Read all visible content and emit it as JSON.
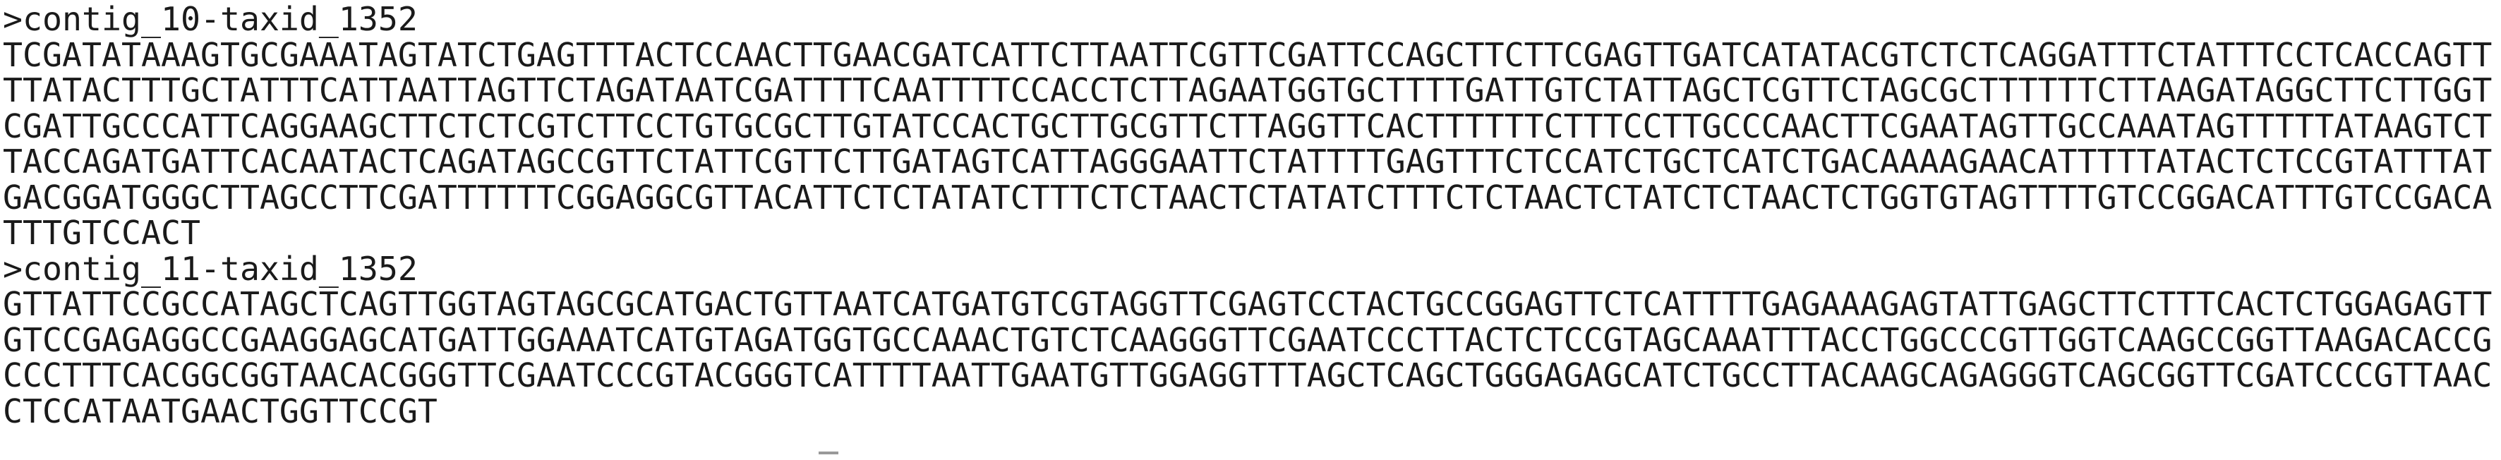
{
  "terminal": {
    "lines": [
      ">contig_10-taxid_1352",
      "TCGATATAAAGTGCGAAATAGTATCTGAGTTTACTCCAACTTGAACGATCATTCTTAATTCGTTCGATTCCAGCTTCTTCGAGTTGATCATATACGTCTCTCAGGATTTCTATTTCCTCACCAGTT",
      "TTATACTTTGCTATTTCATTAATTAGTTCTAGATAATCGATTTTCAATTTTCCACCTCTTAGAATGGTGCTTTTGATTGTCTATTAGCTCGTTCTAGCGCTTTTTTCTTAAGATAGGCTTCTTGGT",
      "CGATTGCCCATTCAGGAAGCTTCTCTCGTCTTCCTGTGCGCTTGTATCCACTGCTTGCGTTCTTAGGTTCACTTTTTTCTTTCCTTGCCCAACTTCGAATAGTTGCCAAATAGTTTTTATAAGTCT",
      "TACCAGATGATTCACAATACTCAGATAGCCGTTCTATTCGTTCTTGATAGTCATTAGGGAATTCTATTTTGAGTTTCTCCATCTGCTCATCTGACAAAAGAACATTTTTATACTCTCCGTATTTAT",
      "GACGGATGGGCTTAGCCTTCGATTTTTTCGGAGGCGTTACATTCTCTATATCTTTCTCTAACTCTATATCTTTCTCTAACTCTATCTCTAACTCTGGTGTAGTTTTGTCCGGACATTTGTCCGACA",
      "TTTGTCCACT",
      ">contig_11-taxid_1352",
      "GTTATTCCGCCATAGCTCAGTTGGTAGTAGCGCATGACTGTTAATCATGATGTCGTAGGTTCGAGTCCTACTGCCGGAGTTCTCATTTTGAGAAAGAGTATTGAGCTTCTTTCACTCTGGAGAGTT",
      "GTCCGAGAGGCCGAAGGAGCATGATTGGAAATCATGTAGATGGTGCCAAACTGTCTCAAGGGTTCGAATCCCTTACTCTCCGTAGCAAATTTACCTGGCCCGTTGGTCAAGCCGGTTAAGACACCG",
      "CCCTTTCACGGCGGTAACACGGGTTCGAATCCCGTACGGGTCATTTTAATTGAATGTTGGAGGTTTAGCTCAGCTGGGAGAGCATCTGCCTTACAAGCAGAGGGTCAGCGGTTCGATCCCGTTAAC",
      "CTCCATAATGAACTGGTTCCGT"
    ]
  }
}
